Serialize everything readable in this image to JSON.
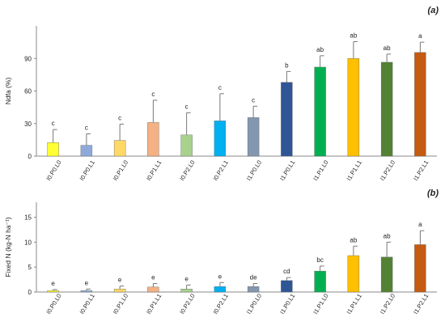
{
  "chart_data": [
    {
      "type": "bar",
      "panel_label": "(a)",
      "title": "",
      "xlabel": "",
      "ylabel": "Ndfa (%)",
      "ylim": [
        0,
        120
      ],
      "yticks": [
        0,
        30,
        60,
        90
      ],
      "grid": false,
      "categories": [
        "I0.P0.L0",
        "I0.P0.L1",
        "I0.P1.L0",
        "I0.P1.L1",
        "I0.P2.L0",
        "I0.P2.L1",
        "I1.P0.L0",
        "I1.P0.L1",
        "I1.P1.L0",
        "I1.P1.L1",
        "I1.P2.L0",
        "I1.P2.L1"
      ],
      "values": [
        12.5,
        10,
        14.5,
        31,
        19.5,
        32.5,
        35.5,
        68,
        82,
        90,
        86.5,
        95.5
      ],
      "errors": [
        12,
        10.5,
        15,
        20.5,
        20.5,
        25,
        10.5,
        10,
        10.5,
        15.5,
        7.5,
        9.5
      ],
      "labels": [
        "c",
        "c",
        "c",
        "c",
        "c",
        "c",
        "c",
        "b",
        "ab",
        "ab",
        "ab",
        "a"
      ],
      "colors": [
        "#ffff33",
        "#8eaadb",
        "#ffd966",
        "#f4b183",
        "#a9d18e",
        "#00b0f0",
        "#8497b0",
        "#2f5597",
        "#00b050",
        "#ffc000",
        "#548235",
        "#c55a11"
      ]
    },
    {
      "type": "bar",
      "panel_label": "(b)",
      "title": "",
      "xlabel": "",
      "ylabel": "Fixed N (kg-N ha⁻¹)",
      "ylim": [
        0,
        18
      ],
      "yticks": [
        0,
        5,
        10,
        15
      ],
      "grid": false,
      "categories": [
        "I0.P0.L0",
        "I0.P0.L1",
        "I0.P1.L0",
        "I0.P1.L1",
        "I0.P2.L0",
        "I0.P2.L1",
        "I1.P0.L0",
        "I1.P0.L1",
        "I1.P1.L0",
        "I1.P1.L1",
        "I1.P2.L0",
        "I1.P2.L1"
      ],
      "values": [
        0.3,
        0.3,
        0.6,
        1.0,
        0.6,
        1.1,
        1.1,
        2.3,
        4.2,
        7.3,
        7.0,
        9.5
      ],
      "errors": [
        0.2,
        0.3,
        0.6,
        0.7,
        0.8,
        0.8,
        0.6,
        0.6,
        1.0,
        1.9,
        3.0,
        2.8
      ],
      "labels": [
        "e",
        "e",
        "e",
        "e",
        "e",
        "e",
        "de",
        "cd",
        "bc",
        "ab",
        "ab",
        "a"
      ],
      "colors": [
        "#ffff33",
        "#8eaadb",
        "#ffd966",
        "#f4b183",
        "#a9d18e",
        "#00b0f0",
        "#8497b0",
        "#2f5597",
        "#00b050",
        "#ffc000",
        "#548235",
        "#c55a11"
      ]
    }
  ]
}
